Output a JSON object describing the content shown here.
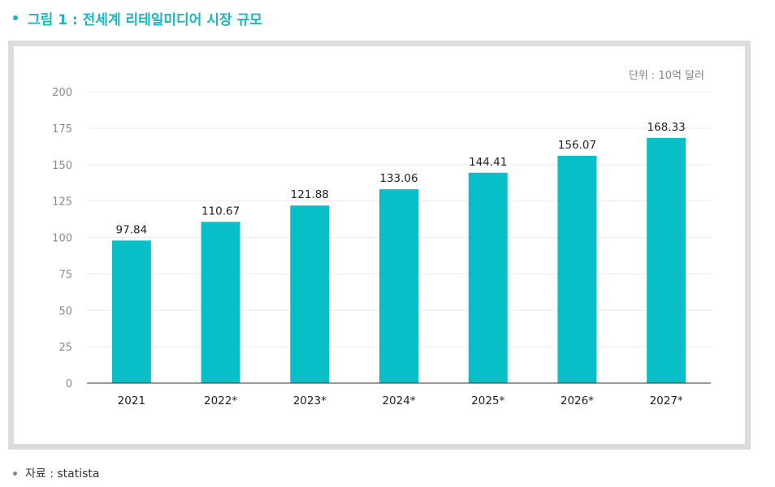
{
  "heading": {
    "title": "그림 1 : 전세계 리테일미디어 시장 규모",
    "color": "#1cb5c0"
  },
  "source": {
    "text": "자료 : statista"
  },
  "chart_data": {
    "type": "bar",
    "unit_label": "단위 : 10억 달러",
    "categories": [
      "2021",
      "2022*",
      "2023*",
      "2024*",
      "2025*",
      "2026*",
      "2027*"
    ],
    "values": [
      97.84,
      110.67,
      121.88,
      133.06,
      144.41,
      156.07,
      168.33
    ],
    "data_labels": [
      "97.84",
      "110.67",
      "121.88",
      "133.06",
      "144.41",
      "156.07",
      "168.33"
    ],
    "y_ticks": [
      "0",
      "25",
      "50",
      "75",
      "100",
      "125",
      "150",
      "175",
      "200"
    ],
    "ylim": [
      0,
      200
    ],
    "grid": true,
    "legend": "none",
    "bar_color": "#08bfc8"
  }
}
